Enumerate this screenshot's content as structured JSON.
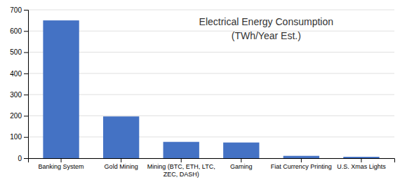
{
  "chart_data": {
    "type": "bar",
    "title": "Electrical Energy Consumption",
    "subtitle": "(TWh/Year Est.)",
    "categories": [
      "Banking System",
      "Gold Mining",
      "Mining (BTC, ETH, LTC,\nZEC, DASH)",
      "Gaming",
      "Fiat Currency Printing",
      "U.S. Xmas Lights"
    ],
    "values": [
      650,
      197,
      77,
      74,
      11,
      6.6
    ],
    "color": "#4472C4",
    "ylim": [
      0,
      700
    ],
    "yticks": [
      0,
      100,
      200,
      300,
      400,
      500,
      600,
      700
    ],
    "grid": true
  }
}
